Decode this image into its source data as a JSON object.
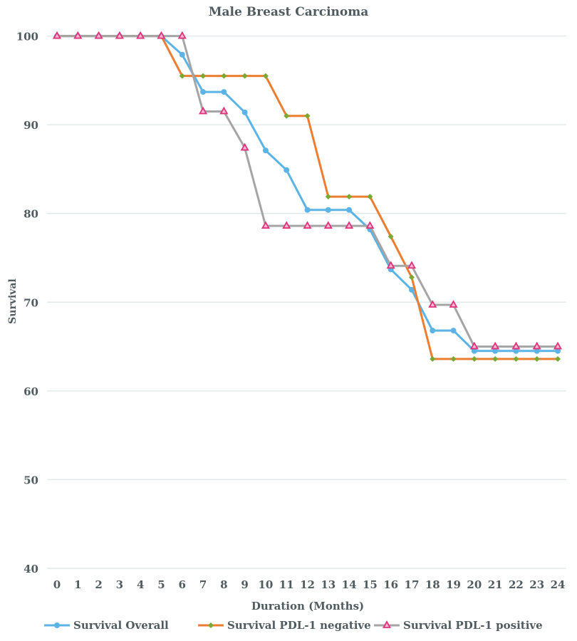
{
  "chart_data": {
    "type": "line",
    "title": "Male Breast Carcinoma",
    "xlabel": "Duration (Months)",
    "ylabel": "Survival",
    "ylim": [
      40,
      100
    ],
    "yticks": [
      40,
      50,
      60,
      70,
      80,
      90,
      100
    ],
    "grid": true,
    "legend_position": "bottom",
    "x": [
      0,
      1,
      2,
      3,
      4,
      5,
      6,
      7,
      8,
      9,
      10,
      11,
      12,
      13,
      14,
      15,
      16,
      17,
      18,
      19,
      20,
      21,
      22,
      23,
      24
    ],
    "series": [
      {
        "name": "Survival Overall",
        "color": "#5bb4e5",
        "marker": "circle",
        "marker_color": "#5bb4e5",
        "values": [
          100,
          100,
          100,
          100,
          100,
          100,
          97.9,
          93.7,
          93.7,
          91.4,
          87.1,
          84.9,
          80.4,
          80.4,
          80.4,
          78.2,
          73.7,
          71.4,
          66.8,
          66.8,
          64.5,
          64.5,
          64.5,
          64.5,
          64.5
        ]
      },
      {
        "name": "Survival PDL-1 negative",
        "color": "#ed7d31",
        "marker": "diamond",
        "marker_color": "#7aa830",
        "values": [
          100,
          100,
          100,
          100,
          100,
          100,
          95.5,
          95.5,
          95.5,
          95.5,
          95.5,
          91.0,
          91.0,
          81.9,
          81.9,
          81.9,
          77.4,
          72.8,
          63.6,
          63.6,
          63.6,
          63.6,
          63.6,
          63.6,
          63.6
        ]
      },
      {
        "name": "Survival PDL-1 positive",
        "color": "#a5a5a5",
        "marker": "triangle",
        "marker_color": "#e0307a",
        "values": [
          100,
          100,
          100,
          100,
          100,
          100,
          100,
          91.5,
          91.5,
          87.4,
          78.6,
          78.6,
          78.6,
          78.6,
          78.6,
          78.6,
          74.1,
          74.1,
          69.7,
          69.7,
          65.0,
          65.0,
          65.0,
          65.0,
          65.0
        ]
      }
    ]
  }
}
